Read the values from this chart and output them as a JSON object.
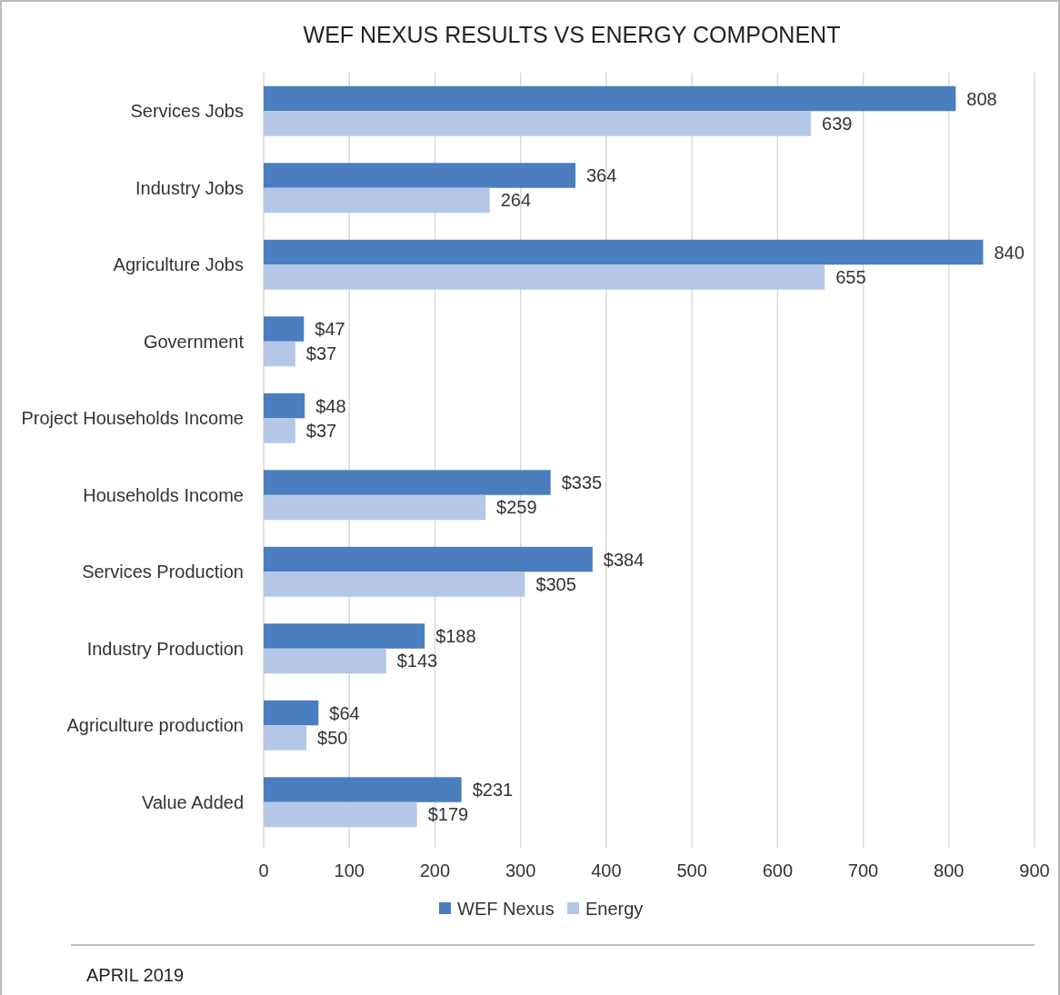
{
  "chart_data": {
    "type": "bar",
    "orientation": "horizontal",
    "title": "WEF NEXUS RESULTS VS ENERGY COMPONENT",
    "categories": [
      "Services Jobs",
      "Industry Jobs",
      "Agriculture Jobs",
      "Government",
      "Project Households Income",
      "Households Income",
      "Services Production",
      "Industry Production",
      "Agriculture production",
      "Value Added"
    ],
    "series": [
      {
        "name": "WEF Nexus",
        "color": "#4a7ebf",
        "values": [
          808,
          364,
          840,
          47,
          48,
          335,
          384,
          188,
          64,
          231
        ],
        "value_labels": [
          "808",
          "364",
          "840",
          "$47",
          "$48",
          "$335",
          "$384",
          "$188",
          "$64",
          "$231"
        ]
      },
      {
        "name": "Energy",
        "color": "#b4c7e7",
        "values": [
          639,
          264,
          655,
          37,
          37,
          259,
          305,
          143,
          50,
          179
        ],
        "value_labels": [
          "639",
          "264",
          "655",
          "$37",
          "$37",
          "$259",
          "$305",
          "$143",
          "$50",
          "$179"
        ]
      }
    ],
    "xlim": [
      0,
      900
    ],
    "xticks": [
      0,
      100,
      200,
      300,
      400,
      500,
      600,
      700,
      800,
      900
    ],
    "grid": "x",
    "legend": "bottom",
    "annotations": [
      "APRIL 2019"
    ]
  }
}
